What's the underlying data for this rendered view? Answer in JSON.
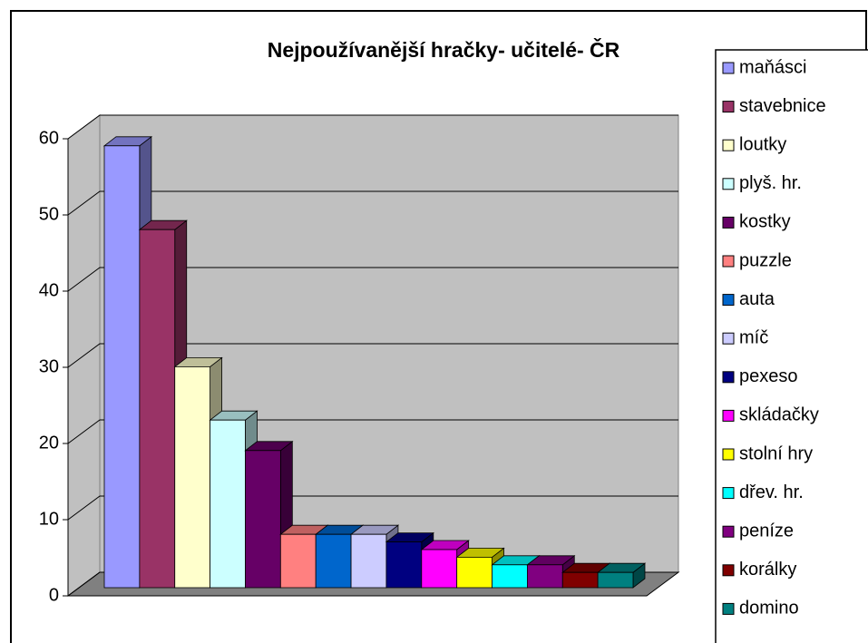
{
  "chart_data": {
    "type": "bar3d",
    "title": "Nejpoužívanější hračky- učitelé- ČR",
    "ylim": [
      0,
      60
    ],
    "yticks": [
      0,
      10,
      20,
      30,
      40,
      50,
      60
    ],
    "grid": true,
    "series": [
      {
        "name": "maňásci",
        "color": "#9999FF",
        "values": [
          58
        ]
      },
      {
        "name": "stavebnice",
        "color": "#993366",
        "values": [
          47
        ]
      },
      {
        "name": "loutky",
        "color": "#FFFFCC",
        "values": [
          29
        ]
      },
      {
        "name": "plyš. hr.",
        "color": "#CCFFFF",
        "values": [
          22
        ]
      },
      {
        "name": "kostky",
        "color": "#660066",
        "values": [
          18
        ]
      },
      {
        "name": "puzzle",
        "color": "#FF8080",
        "values": [
          7
        ]
      },
      {
        "name": "auta",
        "color": "#0066CC",
        "values": [
          7
        ]
      },
      {
        "name": "míč",
        "color": "#CCCCFF",
        "values": [
          7
        ]
      },
      {
        "name": "pexeso",
        "color": "#000080",
        "values": [
          6
        ]
      },
      {
        "name": "skládačky",
        "color": "#FF00FF",
        "values": [
          5
        ]
      },
      {
        "name": "stolní hry",
        "color": "#FFFF00",
        "values": [
          4
        ]
      },
      {
        "name": "dřev. hr.",
        "color": "#00FFFF",
        "values": [
          3
        ]
      },
      {
        "name": "peníze",
        "color": "#800080",
        "values": [
          3
        ]
      },
      {
        "name": "korálky",
        "color": "#800000",
        "values": [
          2
        ]
      },
      {
        "name": "domino",
        "color": "#008080",
        "values": [
          2
        ]
      }
    ]
  }
}
